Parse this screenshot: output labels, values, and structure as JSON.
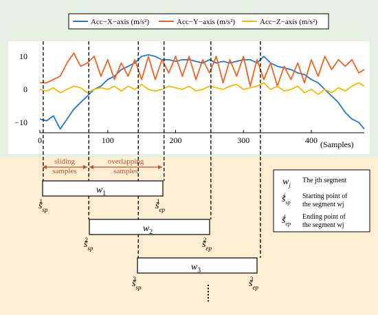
{
  "legend": {
    "x_label": "Acc−X−axis (m/s²)",
    "y_label": "Acc−Y−axis (m/s²)",
    "z_label": "Acc−Z−axis (m/s²)"
  },
  "colors": {
    "x_axis": "#1f77c9",
    "y_axis": "#f0621b",
    "z_axis": "#f5b800",
    "top_panel": "#e7f1e3",
    "bottom_panel": "#fbeed3",
    "annotation": "#c0502b"
  },
  "chart_data": {
    "type": "line",
    "xlabel": "(Samples)",
    "x_ticks": [
      "0",
      "100",
      "200",
      "300",
      "400"
    ],
    "y_ticks": [
      "10",
      "0",
      "−10"
    ],
    "xlim": [
      0,
      480
    ],
    "ylim": [
      -14,
      15
    ],
    "series": [
      {
        "name": "Acc−X−axis (m/s²)",
        "color": "#1f77c9",
        "x": [
          0,
          10,
          20,
          30,
          40,
          50,
          60,
          70,
          80,
          90,
          100,
          110,
          120,
          130,
          140,
          150,
          160,
          170,
          180,
          190,
          200,
          210,
          220,
          230,
          240,
          250,
          260,
          270,
          280,
          290,
          300,
          310,
          320,
          330,
          340,
          350,
          360,
          370,
          380,
          390,
          400,
          410,
          420,
          430,
          440,
          450,
          460,
          470,
          478
        ],
        "values": [
          -9,
          -9.5,
          -8,
          -12,
          -9,
          -6,
          -4,
          -2,
          0,
          1,
          3,
          4,
          6,
          7,
          8,
          10,
          10.5,
          10,
          9,
          9,
          8.5,
          9,
          9,
          8.5,
          8,
          9,
          8,
          8.5,
          8,
          8.5,
          9,
          9,
          8,
          10,
          8,
          7,
          6.5,
          6,
          5,
          4.5,
          3,
          2,
          0,
          -2,
          -4,
          -7,
          -9,
          -10,
          -12
        ]
      },
      {
        "name": "Acc−Y−axis (m/s²)",
        "color": "#f0621b",
        "x": [
          0,
          10,
          20,
          30,
          40,
          50,
          60,
          70,
          80,
          90,
          100,
          110,
          120,
          130,
          140,
          150,
          160,
          170,
          180,
          190,
          200,
          210,
          220,
          230,
          240,
          250,
          260,
          270,
          280,
          290,
          300,
          310,
          320,
          330,
          340,
          350,
          360,
          370,
          380,
          390,
          400,
          410,
          420,
          430,
          440,
          450,
          460,
          470,
          478
        ],
        "values": [
          2,
          2,
          3,
          4,
          8,
          11,
          7,
          8,
          10,
          4,
          9,
          3,
          8,
          4,
          9,
          3,
          10,
          3,
          9,
          5,
          10,
          4,
          10,
          3,
          9,
          5,
          10,
          2,
          9,
          4,
          10,
          1,
          9,
          3,
          8,
          1,
          7,
          3,
          8,
          2,
          9,
          4,
          10,
          6,
          9,
          7,
          9,
          5,
          6
        ]
      },
      {
        "name": "Acc−Z−axis (m/s²)",
        "color": "#f5b800",
        "x": [
          0,
          10,
          20,
          30,
          40,
          50,
          60,
          70,
          80,
          90,
          100,
          110,
          120,
          130,
          140,
          150,
          160,
          170,
          180,
          190,
          200,
          210,
          220,
          230,
          240,
          250,
          260,
          270,
          280,
          290,
          300,
          310,
          320,
          330,
          340,
          350,
          360,
          370,
          380,
          390,
          400,
          410,
          420,
          430,
          440,
          450,
          460,
          470,
          478
        ],
        "values": [
          0,
          -0.5,
          0.5,
          -1,
          0,
          1,
          0.5,
          -1,
          0,
          0.5,
          0,
          1,
          -0.5,
          1,
          0,
          1.5,
          0,
          -0.5,
          0,
          1,
          0.5,
          0,
          1,
          -0.5,
          0,
          1,
          0.5,
          0,
          1,
          1.5,
          0,
          0.5,
          1,
          2,
          0,
          1,
          -0.5,
          0,
          1,
          -1,
          0,
          -1.5,
          0,
          -1,
          0.5,
          -0.5,
          1,
          2,
          1
        ]
      }
    ],
    "markers": [
      5,
      72,
      145,
      183,
      252,
      325
    ]
  },
  "annotations": {
    "sliding": [
      "sliding",
      "samples"
    ],
    "overlapping": [
      "overlapping",
      "samples"
    ]
  },
  "windows": [
    {
      "label": "w",
      "sub": "1",
      "sp_label": "s̃",
      "sp_sub": "sp",
      "sp_sup": "1",
      "ep_label": "s̃",
      "ep_sub": "ep",
      "ep_sup": "1"
    },
    {
      "label": "w",
      "sub": "2",
      "sp_label": "s̃",
      "sp_sub": "sp",
      "sp_sup": "2",
      "ep_label": "s̃",
      "ep_sub": "ep",
      "ep_sup": "2"
    },
    {
      "label": "w",
      "sub": "3",
      "sp_label": "s̃",
      "sp_sub": "sp",
      "sp_sup": "3",
      "ep_label": "s̃",
      "ep_sub": "ep",
      "ep_sup": "3"
    }
  ],
  "key": {
    "row1": {
      "symbol": "w",
      "sub": "j",
      "text": [
        "The jth segment"
      ]
    },
    "row2": {
      "symbol": "s̃",
      "sub": "sp",
      "sup": "j",
      "text": [
        "Starting point of",
        "the segment wj"
      ]
    },
    "row3": {
      "symbol": "s̃",
      "sub": "ep",
      "sup": "j",
      "text": [
        "Ending point of",
        "the segment wj"
      ]
    }
  }
}
